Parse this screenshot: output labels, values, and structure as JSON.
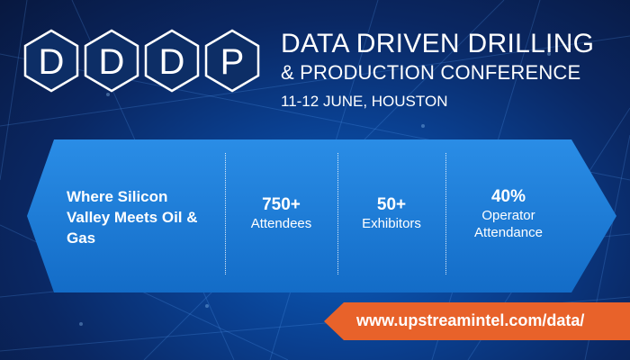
{
  "logo": {
    "letters": [
      "D",
      "D",
      "D",
      "P"
    ]
  },
  "header": {
    "title_line1": "DATA DRIVEN DRILLING",
    "title_line2": "& PRODUCTION CONFERENCE",
    "date_location": "11-12 JUNE, HOUSTON"
  },
  "ribbon": {
    "tagline": "Where Silicon Valley Meets Oil & Gas",
    "stats": [
      {
        "value": "750+",
        "label": "Attendees"
      },
      {
        "value": "50+",
        "label": "Exhibitors"
      },
      {
        "value": "40%",
        "label": "Operator Attendance"
      }
    ]
  },
  "cta": {
    "url": "www.upstreamintel.com/data/"
  },
  "colors": {
    "accent": "#e8622a",
    "ribbon": "#1b7bd6",
    "background": "#0a2762"
  }
}
